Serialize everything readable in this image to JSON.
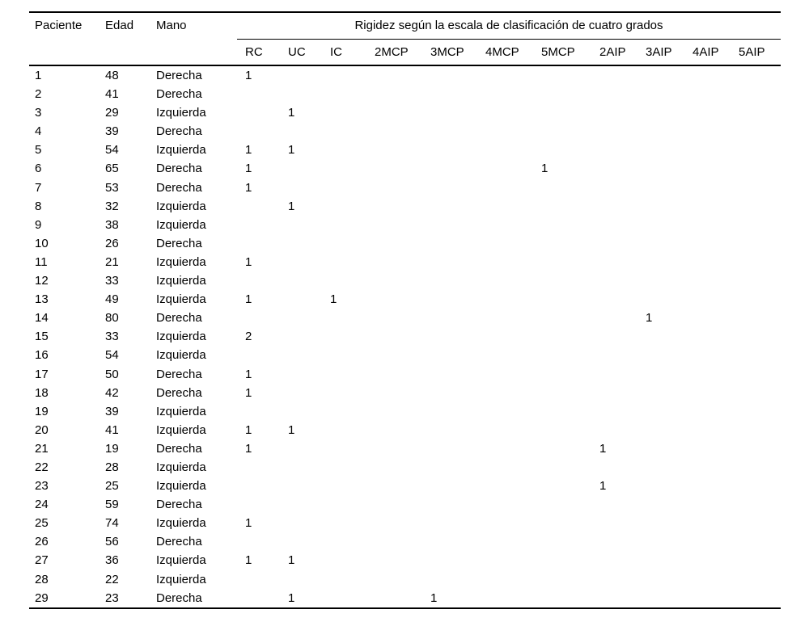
{
  "page": {
    "background_color": "#ffffff",
    "text_color": "#000000"
  },
  "table": {
    "fixed_columns": [
      "Paciente",
      "Edad",
      "Mano"
    ],
    "span_header": "Rigidez según la escala de clasificación de cuatro grados",
    "sub_columns": [
      "RC",
      "UC",
      "IC",
      "2MCP",
      "3MCP",
      "4MCP",
      "5MCP",
      "2AIP",
      "3AIP",
      "4AIP",
      "5AIP"
    ],
    "rows": [
      [
        "1",
        "48",
        "Derecha",
        "1",
        "",
        "",
        "",
        "",
        "",
        "",
        "",
        "",
        "",
        ""
      ],
      [
        "2",
        "41",
        "Derecha",
        "",
        "",
        "",
        "",
        "",
        "",
        "",
        "",
        "",
        "",
        ""
      ],
      [
        "3",
        "29",
        "Izquierda",
        "",
        "1",
        "",
        "",
        "",
        "",
        "",
        "",
        "",
        "",
        ""
      ],
      [
        "4",
        "39",
        "Derecha",
        "",
        "",
        "",
        "",
        "",
        "",
        "",
        "",
        "",
        "",
        ""
      ],
      [
        "5",
        "54",
        "Izquierda",
        "1",
        "1",
        "",
        "",
        "",
        "",
        "",
        "",
        "",
        "",
        ""
      ],
      [
        "6",
        "65",
        "Derecha",
        "1",
        "",
        "",
        "",
        "",
        "",
        "1",
        "",
        "",
        "",
        ""
      ],
      [
        "7",
        "53",
        "Derecha",
        "1",
        "",
        "",
        "",
        "",
        "",
        "",
        "",
        "",
        "",
        ""
      ],
      [
        "8",
        "32",
        "Izquierda",
        "",
        "1",
        "",
        "",
        "",
        "",
        "",
        "",
        "",
        "",
        ""
      ],
      [
        "9",
        "38",
        "Izquierda",
        "",
        "",
        "",
        "",
        "",
        "",
        "",
        "",
        "",
        "",
        ""
      ],
      [
        "10",
        "26",
        "Derecha",
        "",
        "",
        "",
        "",
        "",
        "",
        "",
        "",
        "",
        "",
        ""
      ],
      [
        "11",
        "21",
        "Izquierda",
        "1",
        "",
        "",
        "",
        "",
        "",
        "",
        "",
        "",
        "",
        ""
      ],
      [
        "12",
        "33",
        "Izquierda",
        "",
        "",
        "",
        "",
        "",
        "",
        "",
        "",
        "",
        "",
        ""
      ],
      [
        "13",
        "49",
        "Izquierda",
        "1",
        "",
        "1",
        "",
        "",
        "",
        "",
        "",
        "",
        "",
        ""
      ],
      [
        "14",
        "80",
        "Derecha",
        "",
        "",
        "",
        "",
        "",
        "",
        "",
        "",
        "1",
        "",
        ""
      ],
      [
        "15",
        "33",
        "Izquierda",
        "2",
        "",
        "",
        "",
        "",
        "",
        "",
        "",
        "",
        "",
        ""
      ],
      [
        "16",
        "54",
        "Izquierda",
        "",
        "",
        "",
        "",
        "",
        "",
        "",
        "",
        "",
        "",
        ""
      ],
      [
        "17",
        "50",
        "Derecha",
        "1",
        "",
        "",
        "",
        "",
        "",
        "",
        "",
        "",
        "",
        ""
      ],
      [
        "18",
        "42",
        "Derecha",
        "1",
        "",
        "",
        "",
        "",
        "",
        "",
        "",
        "",
        "",
        ""
      ],
      [
        "19",
        "39",
        "Izquierda",
        "",
        "",
        "",
        "",
        "",
        "",
        "",
        "",
        "",
        "",
        ""
      ],
      [
        "20",
        "41",
        "Izquierda",
        "1",
        "1",
        "",
        "",
        "",
        "",
        "",
        "",
        "",
        "",
        ""
      ],
      [
        "21",
        "19",
        "Derecha",
        "1",
        "",
        "",
        "",
        "",
        "",
        "",
        "1",
        "",
        "",
        ""
      ],
      [
        "22",
        "28",
        "Izquierda",
        "",
        "",
        "",
        "",
        "",
        "",
        "",
        "",
        "",
        "",
        ""
      ],
      [
        "23",
        "25",
        "Izquierda",
        "",
        "",
        "",
        "",
        "",
        "",
        "",
        "1",
        "",
        "",
        ""
      ],
      [
        "24",
        "59",
        "Derecha",
        "",
        "",
        "",
        "",
        "",
        "",
        "",
        "",
        "",
        "",
        ""
      ],
      [
        "25",
        "74",
        "Izquierda",
        "1",
        "",
        "",
        "",
        "",
        "",
        "",
        "",
        "",
        "",
        ""
      ],
      [
        "26",
        "56",
        "Derecha",
        "",
        "",
        "",
        "",
        "",
        "",
        "",
        "",
        "",
        "",
        ""
      ],
      [
        "27",
        "36",
        "Izquierda",
        "1",
        "1",
        "",
        "",
        "",
        "",
        "",
        "",
        "",
        "",
        ""
      ],
      [
        "28",
        "22",
        "Izquierda",
        "",
        "",
        "",
        "",
        "",
        "",
        "",
        "",
        "",
        "",
        ""
      ],
      [
        "29",
        "23",
        "Derecha",
        "",
        "1",
        "",
        "",
        "1",
        "",
        "",
        "",
        "",
        "",
        ""
      ]
    ]
  }
}
